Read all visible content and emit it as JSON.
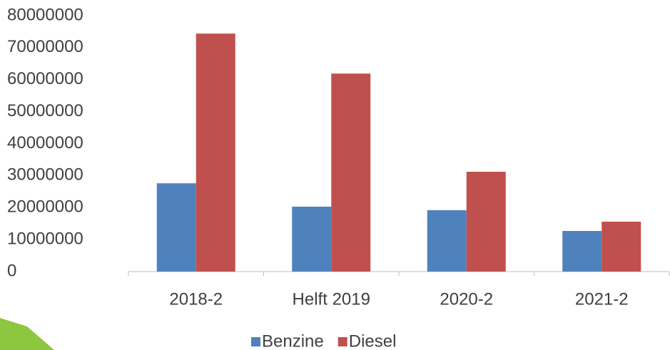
{
  "chart_data": {
    "type": "bar",
    "categories": [
      "2018-2",
      "Helft 2019",
      "2020-2",
      "2021-2"
    ],
    "series": [
      {
        "name": "Benzine",
        "color": "#4f81bd",
        "values": [
          27600000,
          20300000,
          19200000,
          12700000
        ]
      },
      {
        "name": "Diesel",
        "color": "#c0504d",
        "values": [
          74400000,
          61900000,
          31200000,
          15600000
        ]
      }
    ],
    "ylim": [
      0,
      80000000
    ],
    "yticks": [
      0,
      10000000,
      20000000,
      30000000,
      40000000,
      50000000,
      60000000,
      70000000,
      80000000
    ],
    "grid": false,
    "legend": "bottom"
  }
}
